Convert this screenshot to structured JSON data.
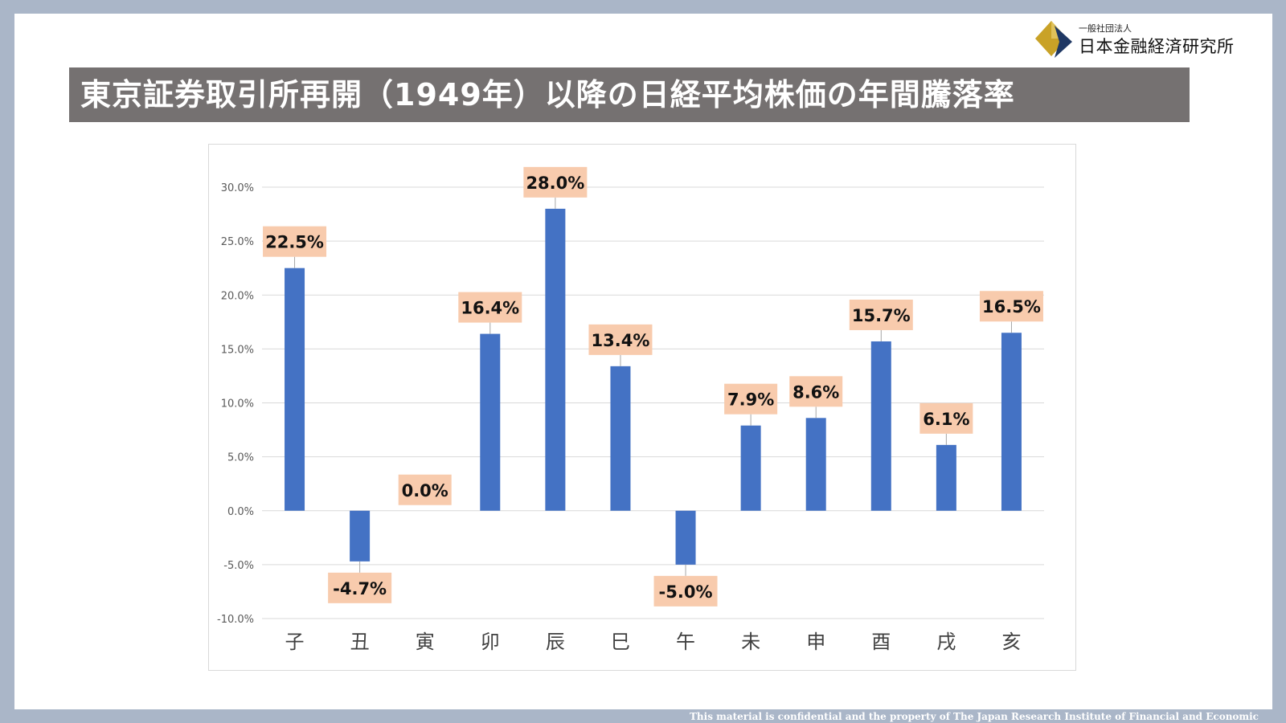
{
  "logo": {
    "sub_text": "一般社団法人",
    "main_text": "日本金融経済研究所",
    "colors": {
      "gold": "#c9a227",
      "navy": "#1f3864"
    }
  },
  "title": "東京証券取引所再開（1949年）以降の日経平均株価の年間騰落率",
  "footer": "This material is confidential and the property of The Japan Research Institute of Financial and Economic",
  "colors": {
    "background": "#aab6c8",
    "title_bar": "#757171",
    "bar": "#4472c4",
    "label_bg": "#f8cbad",
    "gridline": "#d9d9d9"
  },
  "chart_data": {
    "type": "bar",
    "categories": [
      "子",
      "丑",
      "寅",
      "卯",
      "辰",
      "巳",
      "午",
      "未",
      "申",
      "酉",
      "戌",
      "亥"
    ],
    "values": [
      22.5,
      -4.7,
      0.0,
      16.4,
      28.0,
      13.4,
      -5.0,
      7.9,
      8.6,
      15.7,
      6.1,
      16.5
    ],
    "data_labels": [
      "22.5%",
      "-4.7%",
      "0.0%",
      "16.4%",
      "28.0%",
      "13.4%",
      "-5.0%",
      "7.9%",
      "8.6%",
      "15.7%",
      "6.1%",
      "16.5%"
    ],
    "title": "",
    "xlabel": "",
    "ylabel": "",
    "ylim": [
      -10,
      30
    ],
    "yticks": [
      30,
      25,
      20,
      15,
      10,
      5,
      0,
      -5,
      -10
    ],
    "ytick_labels": [
      "30.0%",
      "25.0%",
      "20.0%",
      "15.0%",
      "10.0%",
      "5.0%",
      "0.0%",
      "-5.0%",
      "-10.0%"
    ],
    "grid": true,
    "legend": "none"
  }
}
